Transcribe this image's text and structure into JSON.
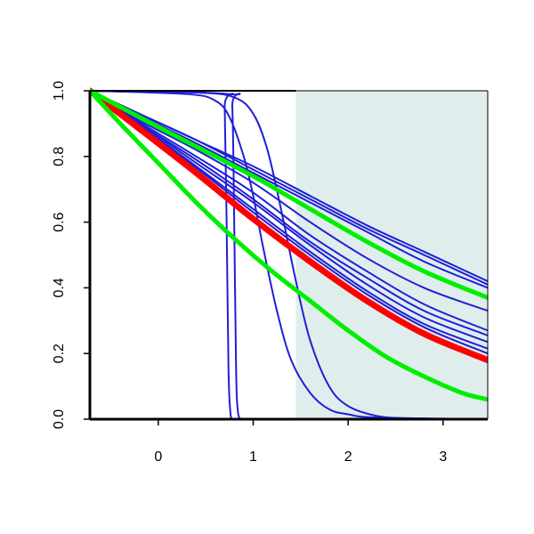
{
  "chart_data": {
    "type": "line",
    "title": "",
    "xlabel": "",
    "ylabel": "",
    "xlim": [
      -0.72,
      3.47
    ],
    "ylim": [
      0.0,
      1.0
    ],
    "x_ticks": [
      0,
      1,
      2,
      3
    ],
    "x_tick_labels": [
      "0",
      "1",
      "2",
      "3"
    ],
    "y_ticks": [
      0.0,
      0.2,
      0.4,
      0.6,
      0.8,
      1.0
    ],
    "y_tick_labels": [
      "0.0",
      "0.2",
      "0.4",
      "0.6",
      "0.8",
      "1.0"
    ],
    "grid": false,
    "legend": "none",
    "shaded_region": {
      "x_from": 1.45,
      "x_to": 3.47,
      "color": "#e0eded"
    },
    "colors": {
      "blue": "#1f1fd6",
      "red": "#ff0000",
      "green": "#00ee00",
      "axis": "#000000"
    },
    "series": [
      {
        "color": "blue",
        "width": 2,
        "x": [
          -0.72,
          0.68,
          0.7,
          0.72,
          0.74,
          0.76,
          0.78
        ],
        "y": [
          1.0,
          0.99,
          0.95,
          0.6,
          0.15,
          0.02,
          0.0
        ]
      },
      {
        "color": "blue",
        "width": 2,
        "x": [
          -0.72,
          0.74,
          0.78,
          0.8,
          0.82,
          0.84,
          0.88
        ],
        "y": [
          1.0,
          0.99,
          0.95,
          0.6,
          0.15,
          0.02,
          0.0
        ]
      },
      {
        "color": "blue",
        "width": 2,
        "x": [
          -0.72,
          0.3,
          0.6,
          0.75,
          0.9,
          1.0,
          1.1,
          1.25,
          1.4,
          1.6,
          1.8,
          2.0,
          2.3,
          3.47
        ],
        "y": [
          1.0,
          0.99,
          0.97,
          0.92,
          0.8,
          0.68,
          0.53,
          0.33,
          0.18,
          0.08,
          0.03,
          0.015,
          0.005,
          0.0
        ]
      },
      {
        "color": "blue",
        "width": 2,
        "x": [
          -0.72,
          0.4,
          0.8,
          1.0,
          1.15,
          1.3,
          1.45,
          1.6,
          1.8,
          2.0,
          2.3,
          2.6,
          3.0,
          3.47
        ],
        "y": [
          1.0,
          0.995,
          0.98,
          0.93,
          0.82,
          0.63,
          0.42,
          0.24,
          0.1,
          0.04,
          0.01,
          0.003,
          0.001,
          0.0
        ]
      },
      {
        "color": "blue",
        "width": 2,
        "x": [
          -0.72,
          -0.2,
          0.4,
          1.0,
          1.6,
          2.2,
          2.8,
          3.47
        ],
        "y": [
          1.0,
          0.93,
          0.85,
          0.77,
          0.68,
          0.59,
          0.51,
          0.42
        ]
      },
      {
        "color": "blue",
        "width": 2,
        "x": [
          -0.72,
          -0.2,
          0.4,
          1.0,
          1.6,
          2.2,
          2.8,
          3.47
        ],
        "y": [
          1.0,
          0.93,
          0.85,
          0.76,
          0.67,
          0.58,
          0.5,
          0.41
        ]
      },
      {
        "color": "blue",
        "width": 2,
        "x": [
          -0.72,
          -0.2,
          0.4,
          1.0,
          1.6,
          2.2,
          2.8,
          3.47
        ],
        "y": [
          1.0,
          0.925,
          0.84,
          0.75,
          0.66,
          0.57,
          0.48,
          0.4
        ]
      },
      {
        "color": "blue",
        "width": 2,
        "x": [
          -0.72,
          -0.2,
          0.4,
          1.0,
          1.6,
          2.2,
          2.8,
          3.47
        ],
        "y": [
          1.0,
          0.91,
          0.82,
          0.72,
          0.6,
          0.49,
          0.4,
          0.33
        ]
      },
      {
        "color": "blue",
        "width": 2,
        "x": [
          -0.72,
          -0.2,
          0.4,
          1.0,
          1.6,
          2.2,
          2.8,
          3.47
        ],
        "y": [
          1.0,
          0.905,
          0.8,
          0.69,
          0.56,
          0.45,
          0.35,
          0.27
        ]
      },
      {
        "color": "blue",
        "width": 2,
        "x": [
          -0.72,
          -0.2,
          0.4,
          1.0,
          1.6,
          2.2,
          2.8,
          3.47
        ],
        "y": [
          1.0,
          0.9,
          0.79,
          0.67,
          0.54,
          0.43,
          0.33,
          0.255
        ]
      },
      {
        "color": "blue",
        "width": 2,
        "x": [
          -0.72,
          -0.2,
          0.4,
          1.0,
          1.6,
          2.2,
          2.8,
          3.47
        ],
        "y": [
          1.0,
          0.9,
          0.78,
          0.66,
          0.53,
          0.41,
          0.31,
          0.235
        ]
      },
      {
        "color": "blue",
        "width": 2,
        "x": [
          -0.72,
          -0.2,
          0.4,
          1.0,
          1.6,
          2.2,
          2.8,
          3.47
        ],
        "y": [
          1.0,
          0.895,
          0.77,
          0.64,
          0.51,
          0.39,
          0.29,
          0.215
        ]
      },
      {
        "color": "blue",
        "width": 2,
        "x": [
          -0.72,
          -0.2,
          0.4,
          1.0,
          1.6,
          2.2,
          2.8,
          3.47
        ],
        "y": [
          1.0,
          0.89,
          0.765,
          0.63,
          0.5,
          0.38,
          0.28,
          0.2
        ]
      },
      {
        "color": "red",
        "width": 7,
        "x": [
          -0.72,
          -0.2,
          0.4,
          1.0,
          1.6,
          2.2,
          2.8,
          3.47
        ],
        "y": [
          1.0,
          0.885,
          0.75,
          0.61,
          0.48,
          0.36,
          0.26,
          0.18
        ]
      },
      {
        "color": "green",
        "width": 5,
        "x": [
          -0.72,
          -0.2,
          0.4,
          1.0,
          1.6,
          2.2,
          2.8,
          3.47
        ],
        "y": [
          1.0,
          0.92,
          0.83,
          0.74,
          0.64,
          0.54,
          0.45,
          0.37
        ]
      },
      {
        "color": "green",
        "width": 5,
        "x": [
          -0.72,
          -0.4,
          0.0,
          0.4,
          0.8,
          1.2,
          1.6,
          2.0,
          2.4,
          2.8,
          3.2,
          3.47
        ],
        "y": [
          1.0,
          0.9,
          0.78,
          0.66,
          0.55,
          0.45,
          0.36,
          0.27,
          0.19,
          0.13,
          0.08,
          0.06
        ]
      }
    ]
  }
}
